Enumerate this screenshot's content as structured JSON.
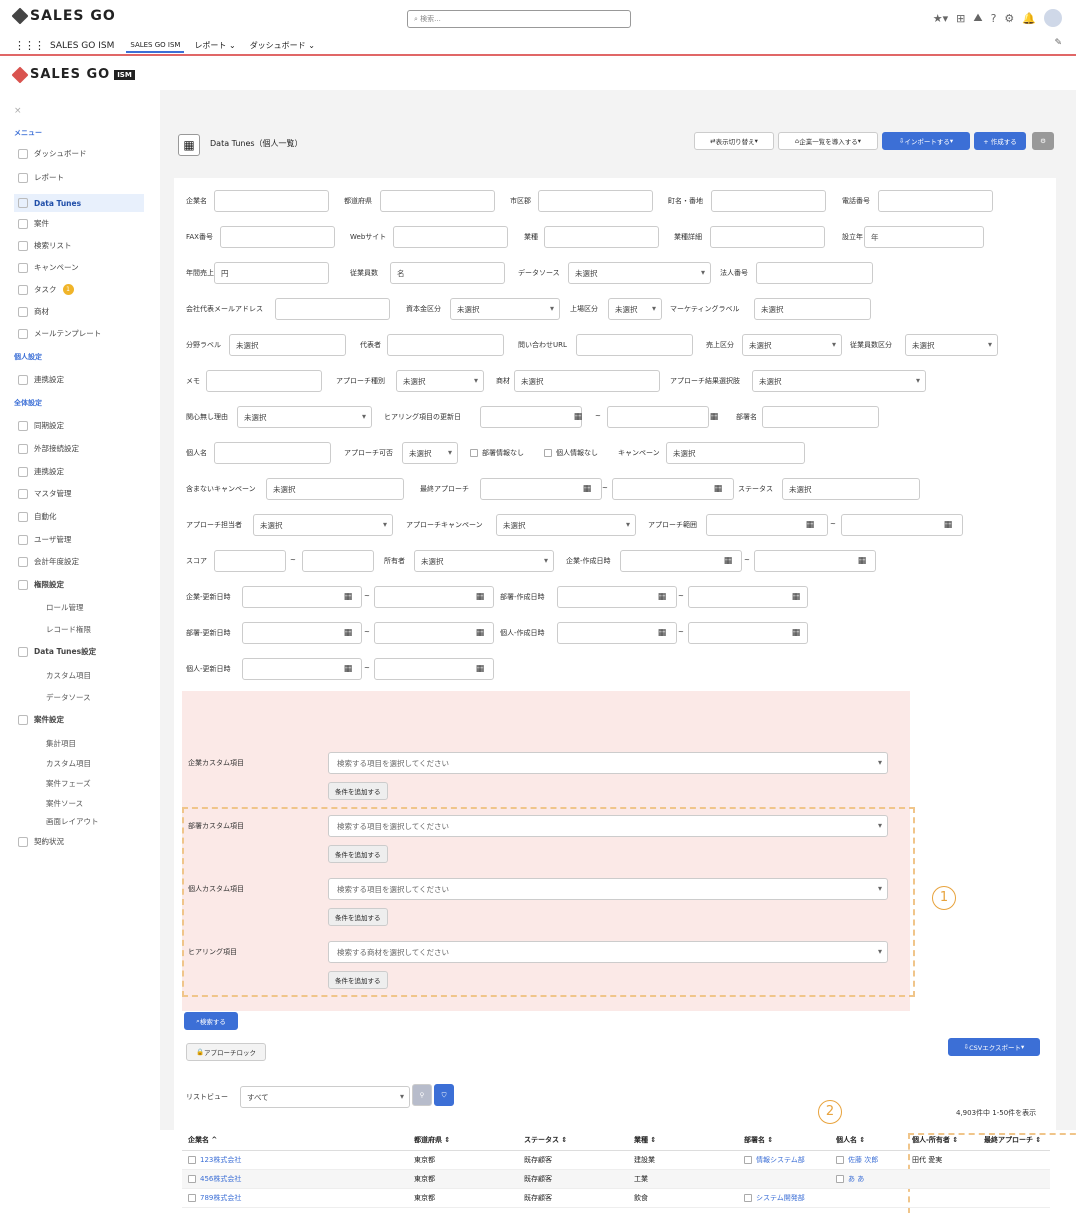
{
  "app": {
    "brand": "SALES GO",
    "app_name": "SALES GO ISM",
    "brand2": "SALES GO",
    "brand2_tag": "ISM"
  },
  "search": {
    "placeholder": "検索..."
  },
  "nav": {
    "tabs": [
      "SALES GO ISM",
      "レポート",
      "ダッシュボード"
    ]
  },
  "sidebar": {
    "close": "×",
    "menu_title": "メニュー",
    "items": [
      "ダッシュボード",
      "レポート",
      "Data Tunes",
      "案件",
      "検索リスト",
      "キャンペーン",
      "タスク",
      "商材",
      "メールテンプレート"
    ],
    "task_badge": "1",
    "personal_title": "個人設定",
    "personal_items": [
      "連携設定"
    ],
    "global_title": "全体設定",
    "global_items": [
      "同期設定",
      "外部接続設定",
      "連携設定",
      "マスタ管理",
      "自動化",
      "ユーザ管理",
      "会計年度設定",
      "権限設定"
    ],
    "perm_sub": [
      "ロール管理",
      "レコード権限"
    ],
    "dt_settings": "Data Tunes設定",
    "dt_sub": [
      "カスタム項目",
      "データソース"
    ],
    "deal_settings": "案件設定",
    "deal_sub": [
      "集計項目",
      "カスタム項目",
      "案件フェーズ",
      "案件ソース",
      "画面レイアウト"
    ],
    "contract": "契約状況"
  },
  "page": {
    "title": "Data Tunes（個人一覧）"
  },
  "actions": {
    "toggle": "表示切り替え",
    "import_list": "企業一覧を導入する",
    "import": "インポートする",
    "create": "+ 作成する"
  },
  "form": {
    "company": "企業名",
    "pref": "都道府県",
    "city": "市区郡",
    "address": "町名・番地",
    "phone": "電話番号",
    "fax": "FAX番号",
    "web": "Webサイト",
    "industry": "業種",
    "rating": "業種詳細",
    "founded": "設立年",
    "founded_unit": "年",
    "sales": "年間売上",
    "sales_unit": "円",
    "employees": "従業員数",
    "emp_unit": "名",
    "datasource": "データソース",
    "unselected": "未選択",
    "corp_no": "法人番号",
    "email": "会社代表メールアドレス",
    "capital": "資本金区分",
    "listed": "上場区分",
    "mkt_label": "マーケティングラベル",
    "field_label": "分野ラベル",
    "rep": "代表者",
    "contact_url": "問い合わせURL",
    "sales_class": "売上区分",
    "emp_class": "従業員数区分",
    "memo": "メモ",
    "approach_type": "アプローチ種別",
    "product": "商材",
    "approach_result": "アプローチ結果選択肢",
    "no_interest": "関心無し理由",
    "hearing_date": "ヒアリング項目の更新日",
    "dept": "部署名",
    "person": "個人名",
    "approach_ok": "アプローチ可否",
    "approach_ok_val": "未選択",
    "no_dept": "部署情報なし",
    "no_person": "個人情報なし",
    "campaign": "キャンペーン",
    "excl_campaign": "含まないキャンペーン",
    "last_approach": "最終アプローチ",
    "status": "ステータス",
    "approach_owner": "アプローチ担当者",
    "approach_campaign": "アプローチキャンペーン",
    "approach_range": "アプローチ範囲",
    "score": "スコア",
    "owner": "所有者",
    "co_created": "企業-作成日時",
    "co_updated": "企業-更新日時",
    "dept_created": "部署-作成日時",
    "dept_updated": "部署-更新日時",
    "person_created": "個人-作成日時",
    "person_updated": "個人-更新日時",
    "tilde": "~"
  },
  "custom": {
    "company_custom": "企業カスタム項目",
    "dept_custom": "部署カスタム項目",
    "person_custom": "個人カスタム項目",
    "hearing": "ヒアリング項目",
    "select_item": "検索する項目を選択してください",
    "select_product": "検索する商材を選択してください",
    "add_cond": "条件を追加する"
  },
  "search_btn": "検索する",
  "approach_lock": "アプローチロック",
  "csv_export": "CSVエクスポート",
  "listview": {
    "label": "リストビュー",
    "value": "すべて"
  },
  "count": "4,903件中 1-50件を表示",
  "annotations": {
    "one": "1",
    "two": "2"
  },
  "table": {
    "headers": [
      "企業名 ^",
      "都道府県 ⇕",
      "ステータス ⇕",
      "業種 ⇕",
      "部署名 ⇕",
      "個人名 ⇕",
      "個人-所有者 ⇕",
      "最終アプローチ ⇕"
    ],
    "rows": [
      [
        "123株式会社",
        "東京都",
        "既存顧客",
        "建設業",
        "情報システム部",
        "佐藤 次郎",
        "田代 愛実",
        ""
      ],
      [
        "456株式会社",
        "東京都",
        "既存顧客",
        "工業",
        "",
        "あ あ",
        "",
        ""
      ],
      [
        "789株式会社",
        "東京都",
        "既存顧客",
        "飲食",
        "システム開発部",
        "",
        "",
        ""
      ]
    ]
  },
  "colors": {
    "accent": "#3c6fd6",
    "pink": "#fbe9e7",
    "orange": "#e8a33d"
  }
}
